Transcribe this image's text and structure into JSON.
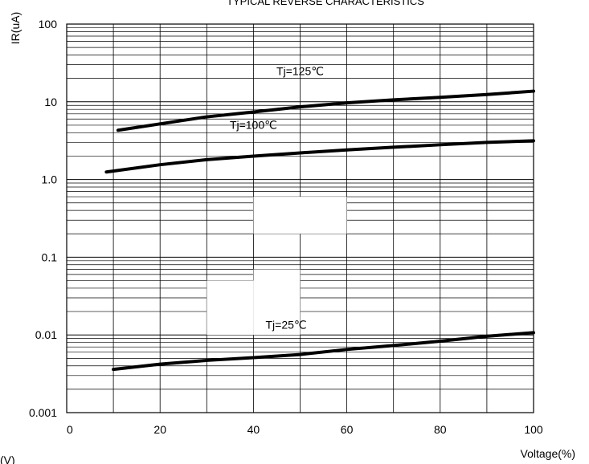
{
  "chart_data": {
    "type": "line",
    "title": "TYPICAL REVERSE CHARACTERISTICS",
    "xlabel": "Voltage(%)",
    "ylabel": "IR(uA)",
    "bottom_left_label": "(V)",
    "y_scale": "log",
    "xlim": [
      0,
      100
    ],
    "ylim": [
      0.001,
      100
    ],
    "x_ticks": [
      "0",
      "20",
      "40",
      "60",
      "80",
      "100"
    ],
    "y_ticks": [
      "0.001",
      "0.01",
      "0.1",
      "1.0",
      "10",
      "100"
    ],
    "grid": true,
    "series": [
      {
        "name": "Tj=125℃",
        "label_text": "Tj=125℃",
        "x": [
          11,
          20,
          30,
          40,
          50,
          60,
          70,
          80,
          90,
          100
        ],
        "y": [
          4.3,
          5.2,
          6.4,
          7.4,
          8.6,
          9.7,
          10.6,
          11.4,
          12.4,
          13.7
        ]
      },
      {
        "name": "Tj=100℃",
        "label_text": "Tj=100℃",
        "x": [
          8.5,
          20,
          30,
          40,
          50,
          60,
          70,
          80,
          90,
          100
        ],
        "y": [
          1.25,
          1.55,
          1.8,
          2.0,
          2.2,
          2.4,
          2.6,
          2.8,
          3.0,
          3.15
        ]
      },
      {
        "name": "Tj=25℃",
        "label_text": "Tj=25℃",
        "x": [
          10,
          20,
          30,
          40,
          50,
          60,
          70,
          80,
          90,
          100
        ],
        "y": [
          0.0036,
          0.0042,
          0.0047,
          0.0051,
          0.0056,
          0.0065,
          0.0073,
          0.0083,
          0.0096,
          0.0107
        ]
      }
    ]
  }
}
